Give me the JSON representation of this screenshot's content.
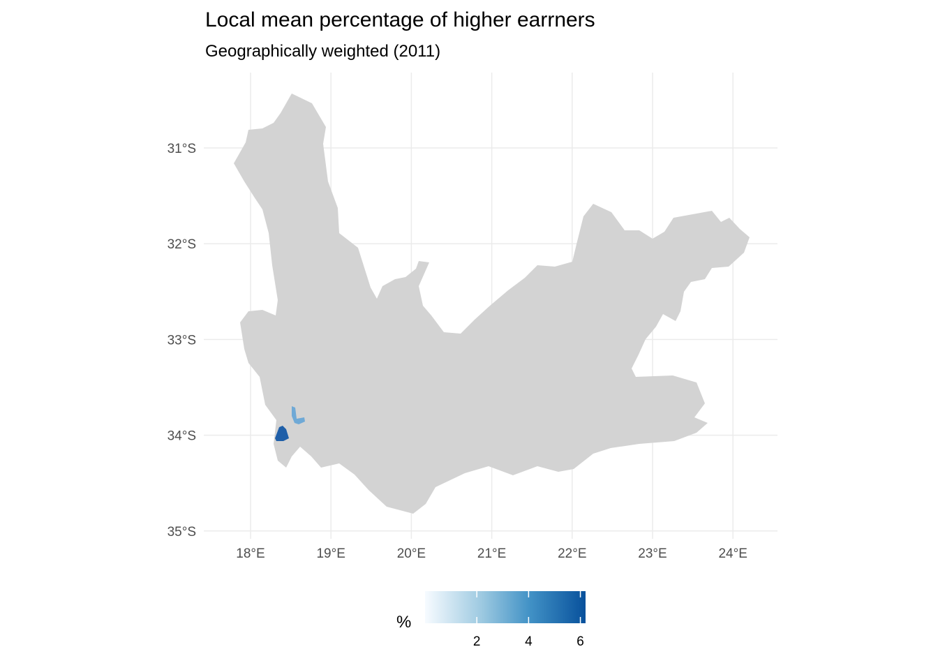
{
  "title": "Local mean percentage of higher earrners",
  "subtitle": "Geographically weighted (2011)",
  "map": {
    "type": "choropleth",
    "region_fill": "#d3d3d3",
    "lon_ticks": [
      {
        "value": 18,
        "label": "18°E"
      },
      {
        "value": 19,
        "label": "19°E"
      },
      {
        "value": 20,
        "label": "20°E"
      },
      {
        "value": 21,
        "label": "21°E"
      },
      {
        "value": 22,
        "label": "22°E"
      },
      {
        "value": 23,
        "label": "23°E"
      },
      {
        "value": 24,
        "label": "24°E"
      }
    ],
    "lat_ticks": [
      {
        "value": -31,
        "label": "31°S"
      },
      {
        "value": -32,
        "label": "32°S"
      },
      {
        "value": -33,
        "label": "33°S"
      },
      {
        "value": -34,
        "label": "34°S"
      },
      {
        "value": -35,
        "label": "35°S"
      }
    ],
    "xlim": [
      17.5,
      24.5
    ],
    "ylim": [
      -35.0,
      -30.5
    ],
    "grid": true
  },
  "legend": {
    "title": "%",
    "position": "bottom",
    "color_low": "#f7fbff",
    "color_mid1": "#9ecae1",
    "color_mid2": "#4292c6",
    "color_high": "#08519c",
    "range": [
      0,
      6.2
    ],
    "ticks": [
      {
        "value": 2,
        "label": "2"
      },
      {
        "value": 4,
        "label": "4"
      },
      {
        "value": 6,
        "label": "6"
      }
    ]
  }
}
